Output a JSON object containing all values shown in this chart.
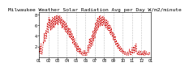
{
  "title": "Milwaukee Weather Solar Radiation Avg per Day W/m2/minute",
  "background_color": "#ffffff",
  "line_color": "#cc0000",
  "grid_color": "#888888",
  "y_values": [
    1.2,
    0.8,
    1.5,
    2.0,
    1.0,
    0.6,
    1.8,
    2.5,
    1.5,
    0.8,
    0.5,
    1.2,
    1.5,
    2.2,
    3.0,
    2.5,
    3.8,
    4.5,
    3.5,
    2.8,
    3.5,
    4.2,
    5.0,
    4.2,
    3.5,
    4.5,
    5.5,
    6.5,
    5.5,
    4.5,
    5.5,
    6.8,
    7.5,
    6.5,
    5.5,
    6.5,
    7.2,
    6.0,
    5.0,
    6.0,
    7.0,
    6.2,
    5.2,
    6.5,
    7.5,
    6.5,
    5.5,
    6.5,
    7.5,
    6.5,
    5.5,
    6.5,
    7.8,
    7.0,
    6.0,
    7.0,
    7.8,
    7.0,
    6.2,
    7.0,
    7.8,
    7.0,
    6.0,
    7.0,
    7.8,
    7.2,
    6.5,
    7.5,
    7.8,
    7.0,
    6.2,
    7.2,
    7.5,
    6.5,
    5.5,
    6.5,
    7.2,
    6.2,
    5.5,
    6.5,
    7.0,
    6.0,
    5.2,
    6.2,
    6.8,
    5.8,
    4.8,
    5.8,
    6.5,
    5.5,
    4.5,
    5.5,
    6.0,
    5.0,
    4.2,
    5.0,
    5.5,
    4.5,
    3.8,
    4.8,
    5.5,
    4.5,
    3.5,
    4.5,
    5.0,
    4.0,
    3.2,
    4.2,
    4.5,
    3.5,
    2.5,
    3.5,
    4.0,
    3.0,
    2.2,
    3.0,
    3.5,
    2.5,
    1.8,
    2.5,
    2.8,
    2.0,
    1.2,
    2.0,
    2.5,
    1.8,
    1.0,
    1.8,
    2.2,
    1.5,
    0.8,
    1.5,
    1.8,
    1.2,
    0.6,
    1.2,
    1.5,
    0.8,
    0.4,
    0.8,
    1.0,
    0.5,
    0.3,
    0.5,
    0.8,
    1.2,
    0.6,
    0.3,
    0.8,
    1.2,
    0.5,
    0.3,
    0.6,
    1.0,
    0.5,
    0.3,
    0.5,
    0.8,
    1.5,
    2.2,
    1.5,
    0.8,
    1.5,
    2.5,
    3.5,
    2.5,
    1.5,
    2.5,
    3.5,
    2.8,
    2.0,
    3.0,
    4.2,
    3.2,
    2.2,
    3.5,
    5.0,
    4.0,
    3.0,
    4.2,
    5.5,
    4.5,
    3.5,
    5.0,
    6.5,
    5.5,
    4.5,
    5.8,
    7.0,
    6.0,
    5.0,
    6.2,
    7.5,
    6.5,
    5.5,
    6.8,
    7.8,
    6.8,
    5.8,
    7.0,
    7.8,
    7.0,
    6.0,
    7.2,
    7.5,
    6.5,
    5.8,
    7.0,
    7.8,
    7.0,
    6.2,
    7.2,
    7.5,
    6.5,
    5.8,
    6.8,
    7.2,
    6.2,
    5.5,
    6.5,
    7.0,
    6.0,
    5.2,
    6.2,
    6.8,
    5.8,
    5.0,
    5.8,
    6.2,
    5.5,
    4.5,
    5.5,
    6.0,
    5.0,
    4.2,
    5.0,
    5.5,
    4.5,
    3.8,
    4.5,
    4.8,
    4.0,
    3.2,
    4.0,
    4.5,
    3.5,
    2.8,
    3.5,
    4.0,
    3.0,
    2.2,
    3.0,
    3.2,
    2.5,
    1.8,
    2.5,
    2.8,
    2.0,
    1.5,
    2.0,
    2.5,
    1.8,
    1.2,
    1.8,
    2.0,
    1.5,
    1.0,
    1.5,
    1.8,
    1.2,
    0.8,
    1.2,
    1.5,
    1.0,
    0.6,
    1.0,
    1.2,
    0.8,
    0.5,
    0.8,
    1.0,
    0.6,
    0.4,
    0.6,
    0.8,
    0.5,
    0.3,
    0.5,
    0.7,
    1.0,
    0.5,
    0.3,
    0.6,
    1.0,
    1.5,
    1.0,
    0.5,
    0.8,
    1.2,
    0.7,
    0.4,
    0.8,
    1.2,
    1.8,
    1.2,
    0.6,
    0.9,
    1.5,
    2.0,
    1.4,
    0.8,
    1.5,
    2.2,
    1.5,
    0.9,
    1.8,
    2.5,
    1.8,
    1.0,
    0.6,
    0.4,
    0.7,
    1.0,
    0.6,
    0.4,
    0.8,
    1.2,
    0.5,
    0.3,
    0.5,
    0.8,
    1.2,
    0.5,
    0.3,
    0.6,
    0.4,
    0.7,
    1.0,
    0.5,
    0.3,
    0.7,
    1.2,
    0.5,
    0.3,
    0.8,
    1.2,
    0.6,
    0.4,
    0.8,
    1.0,
    0.6,
    0.4,
    0.6,
    0.5,
    0.4,
    0.6,
    0.8,
    0.5,
    0.4,
    0.6,
    0.8,
    0.5,
    0.4
  ],
  "x_tick_labels": [
    "01",
    "02",
    "03",
    "04",
    "05",
    "06",
    "07",
    "08",
    "09",
    "10",
    "11",
    "12",
    "01"
  ],
  "ylim": [
    0,
    8.5
  ],
  "y_tick_values": [
    2,
    4,
    6,
    8
  ],
  "y_tick_labels": [
    "2",
    "4",
    "6",
    "8"
  ],
  "title_fontsize": 4.5,
  "tick_fontsize": 3.5,
  "num_months": 12
}
